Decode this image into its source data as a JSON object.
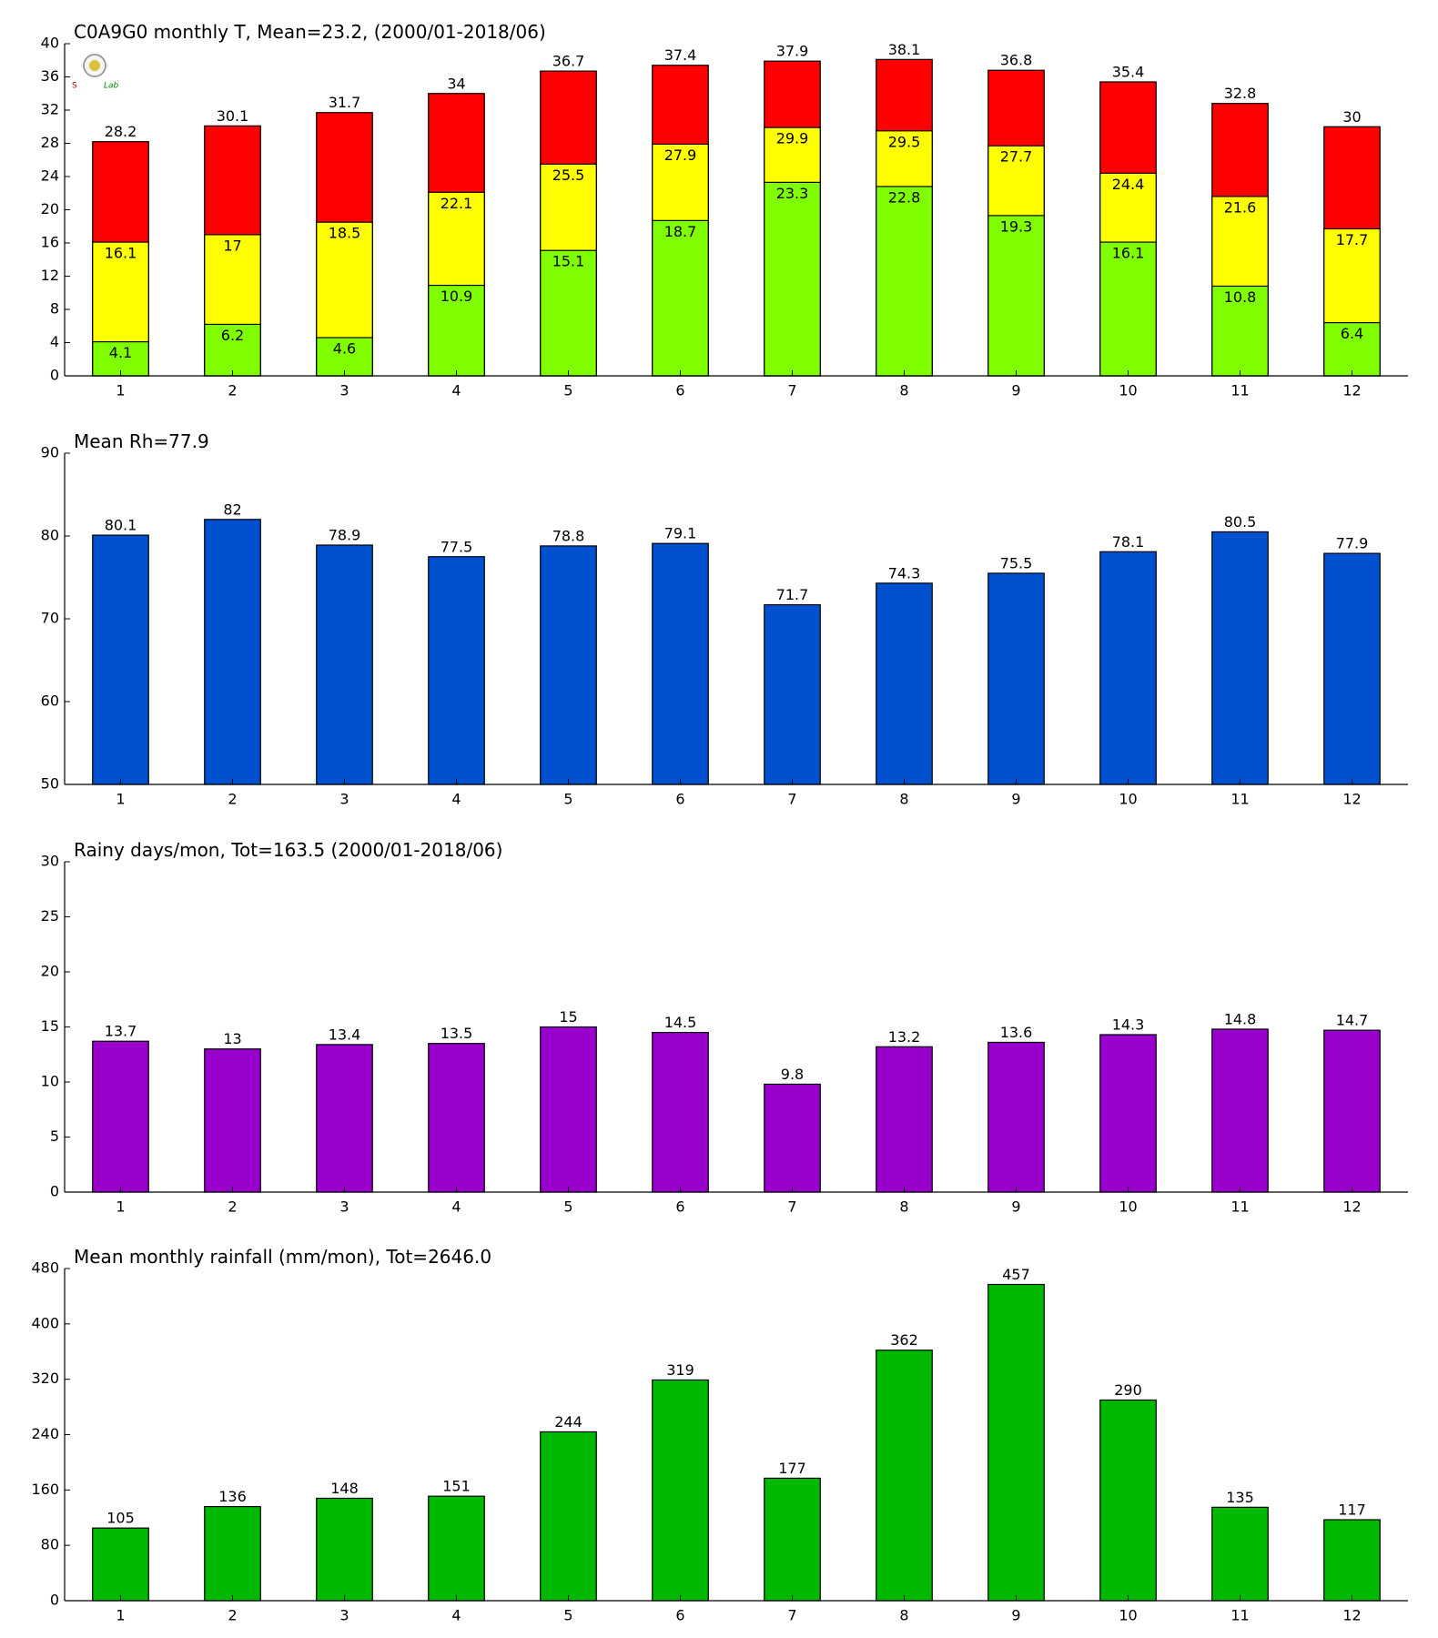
{
  "chart_data": [
    {
      "type": "bar",
      "title": "C0A9G0 monthly T, Mean=23.2, (2000/01-2018/06)",
      "categories": [
        "1",
        "2",
        "3",
        "4",
        "5",
        "6",
        "7",
        "8",
        "9",
        "10",
        "11",
        "12"
      ],
      "series": [
        {
          "color": "#ff0000",
          "values": [
            28.2,
            30.1,
            31.7,
            34,
            36.7,
            37.4,
            37.9,
            38.1,
            36.8,
            35.4,
            32.8,
            30
          ]
        },
        {
          "color": "#ffff00",
          "values": [
            16.1,
            17,
            18.5,
            22.1,
            25.5,
            27.9,
            29.9,
            29.5,
            27.7,
            24.4,
            21.6,
            17.7
          ]
        },
        {
          "color": "#80ff00",
          "values": [
            4.1,
            6.2,
            4.6,
            10.9,
            15.1,
            18.7,
            23.3,
            22.8,
            19.3,
            16.1,
            10.8,
            6.4
          ]
        }
      ],
      "ylim": [
        0,
        40
      ],
      "yticks": [
        0,
        4,
        8,
        12,
        16,
        20,
        24,
        28,
        32,
        36,
        40
      ]
    },
    {
      "type": "bar",
      "title": "Mean Rh=77.9",
      "categories": [
        "1",
        "2",
        "3",
        "4",
        "5",
        "6",
        "7",
        "8",
        "9",
        "10",
        "11",
        "12"
      ],
      "values": [
        80.1,
        82,
        78.9,
        77.5,
        78.8,
        79.1,
        71.7,
        74.3,
        75.5,
        78.1,
        80.5,
        77.9
      ],
      "color": "#0050d0",
      "ylim": [
        50,
        90
      ],
      "yticks": [
        50,
        60,
        70,
        80,
        90
      ]
    },
    {
      "type": "bar",
      "title": "Rainy days/mon, Tot=163.5 (2000/01-2018/06)",
      "categories": [
        "1",
        "2",
        "3",
        "4",
        "5",
        "6",
        "7",
        "8",
        "9",
        "10",
        "11",
        "12"
      ],
      "values": [
        13.7,
        13,
        13.4,
        13.5,
        15,
        14.5,
        9.8,
        13.2,
        13.6,
        14.3,
        14.8,
        14.7
      ],
      "color": "#9900cc",
      "ylim": [
        0,
        30
      ],
      "yticks": [
        0,
        5,
        10,
        15,
        20,
        25,
        30
      ]
    },
    {
      "type": "bar",
      "title": "Mean monthly rainfall (mm/mon), Tot=2646.0",
      "categories": [
        "1",
        "2",
        "3",
        "4",
        "5",
        "6",
        "7",
        "8",
        "9",
        "10",
        "11",
        "12"
      ],
      "values": [
        105,
        136,
        148,
        151,
        244,
        319,
        177,
        362,
        457,
        290,
        135,
        117
      ],
      "color": "#00b800",
      "ylim": [
        0,
        480
      ],
      "yticks": [
        0,
        80,
        160,
        240,
        320,
        400,
        480
      ]
    }
  ]
}
